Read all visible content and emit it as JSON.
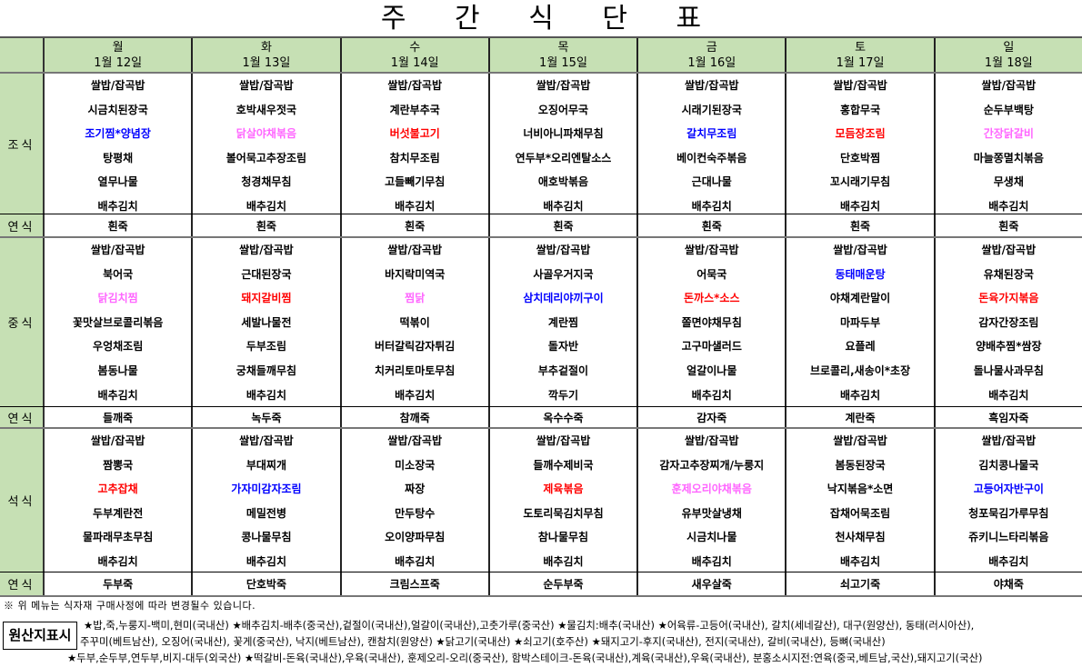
{
  "title": "주 간 식 단 표",
  "days": [
    {
      "name": "월",
      "date": "1월 12일"
    },
    {
      "name": "화",
      "date": "1월 13일"
    },
    {
      "name": "수",
      "date": "1월 14일"
    },
    {
      "name": "목",
      "date": "1월 15일"
    },
    {
      "name": "금",
      "date": "1월 16일"
    },
    {
      "name": "토",
      "date": "1월 17일"
    },
    {
      "name": "일",
      "date": "1월 18일"
    }
  ],
  "colors": {
    "header_bg": "#c6e0b4",
    "blue": "#0000ff",
    "pink": "#ff66ff",
    "red": "#ff0000"
  },
  "meals": [
    {
      "label": "조식",
      "items": [
        [
          [
            "쌀밥/잡곡밥"
          ],
          [
            "시금치된장국"
          ],
          [
            "조기찜*양념장",
            "blue"
          ],
          [
            "탕평채"
          ],
          [
            "열무나물"
          ],
          [
            "배추김치"
          ]
        ],
        [
          [
            "쌀밥/잡곡밥"
          ],
          [
            "호박새우젓국"
          ],
          [
            "닭살야채볶음",
            "pink"
          ],
          [
            "볼어묵고추장조림"
          ],
          [
            "청경채무침"
          ],
          [
            "배추김치"
          ]
        ],
        [
          [
            "쌀밥/잡곡밥"
          ],
          [
            "계란부추국"
          ],
          [
            "버섯불고기",
            "red"
          ],
          [
            "참치무조림"
          ],
          [
            "고들빼기무침"
          ],
          [
            "배추김치"
          ]
        ],
        [
          [
            "쌀밥/잡곡밥"
          ],
          [
            "오징어무국"
          ],
          [
            "너비아니파채무침"
          ],
          [
            "연두부*오리엔탈소스"
          ],
          [
            "애호박볶음"
          ],
          [
            "배추김치"
          ]
        ],
        [
          [
            "쌀밥/잡곡밥"
          ],
          [
            "시래기된장국"
          ],
          [
            "갈치무조림",
            "blue"
          ],
          [
            "베이컨숙주볶음"
          ],
          [
            "근대나물"
          ],
          [
            "배추김치"
          ]
        ],
        [
          [
            "쌀밥/잡곡밥"
          ],
          [
            "홍합무국"
          ],
          [
            "모듬장조림",
            "red"
          ],
          [
            "단호박찜"
          ],
          [
            "꼬시래기무침"
          ],
          [
            "배추김치"
          ]
        ],
        [
          [
            "쌀밥/잡곡밥"
          ],
          [
            "순두부백탕"
          ],
          [
            "간장닭갈비",
            "pink"
          ],
          [
            "마늘쫑멸치볶음"
          ],
          [
            "무생채"
          ],
          [
            "배추김치"
          ]
        ]
      ]
    },
    {
      "label": "연식",
      "items": [
        [
          [
            "흰죽"
          ]
        ],
        [
          [
            "흰죽"
          ]
        ],
        [
          [
            "흰죽"
          ]
        ],
        [
          [
            "흰죽"
          ]
        ],
        [
          [
            "흰죽"
          ]
        ],
        [
          [
            "흰죽"
          ]
        ],
        [
          [
            "흰죽"
          ]
        ]
      ]
    },
    {
      "label": "중식",
      "items": [
        [
          [
            "쌀밥/잡곡밥"
          ],
          [
            "북어국"
          ],
          [
            "닭김치찜",
            "pink"
          ],
          [
            "꽃맛살브로콜리볶음"
          ],
          [
            "우엉채조림"
          ],
          [
            "봄동나물"
          ],
          [
            "배추김치"
          ]
        ],
        [
          [
            "쌀밥/잡곡밥"
          ],
          [
            "근대된장국"
          ],
          [
            "돼지갈비찜",
            "red"
          ],
          [
            "세발나물전"
          ],
          [
            "두부조림"
          ],
          [
            "궁채들깨무침"
          ],
          [
            "배추김치"
          ]
        ],
        [
          [
            "쌀밥/잡곡밥"
          ],
          [
            "바지락미역국"
          ],
          [
            "찜닭",
            "pink"
          ],
          [
            "떡볶이"
          ],
          [
            "버터갈릭감자튀김"
          ],
          [
            "치커리토마토무침"
          ],
          [
            "배추김치"
          ]
        ],
        [
          [
            "쌀밥/잡곡밥"
          ],
          [
            "사골우거지국"
          ],
          [
            "삼치데리야끼구이",
            "blue"
          ],
          [
            "계란찜"
          ],
          [
            "돌자반"
          ],
          [
            "부추겉절이"
          ],
          [
            "깍두기"
          ]
        ],
        [
          [
            "쌀밥/잡곡밥"
          ],
          [
            "어묵국"
          ],
          [
            "돈까스*소스",
            "red"
          ],
          [
            "쫄면야채무침"
          ],
          [
            "고구마샐러드"
          ],
          [
            "얼갈이나물"
          ],
          [
            "배추김치"
          ]
        ],
        [
          [
            "쌀밥/잡곡밥"
          ],
          [
            "동태매운탕",
            "blue"
          ],
          [
            "야채계란말이"
          ],
          [
            "마파두부"
          ],
          [
            "요플레"
          ],
          [
            "브로콜리,새송이*초장"
          ],
          [
            "배추김치"
          ]
        ],
        [
          [
            "쌀밥/잡곡밥"
          ],
          [
            "유채된장국"
          ],
          [
            "돈육가지볶음",
            "red"
          ],
          [
            "감자간장조림"
          ],
          [
            "양배추찜*쌈장"
          ],
          [
            "돌나물사과무침"
          ],
          [
            "배추김치"
          ]
        ]
      ]
    },
    {
      "label": "연식",
      "items": [
        [
          [
            "들깨죽"
          ]
        ],
        [
          [
            "녹두죽"
          ]
        ],
        [
          [
            "참깨죽"
          ]
        ],
        [
          [
            "옥수수죽"
          ]
        ],
        [
          [
            "감자죽"
          ]
        ],
        [
          [
            "계란죽"
          ]
        ],
        [
          [
            "흑임자죽"
          ]
        ]
      ]
    },
    {
      "label": "석식",
      "items": [
        [
          [
            "쌀밥/잡곡밥"
          ],
          [
            "짬뽕국"
          ],
          [
            "고추잡채",
            "red"
          ],
          [
            "두부계란전"
          ],
          [
            "물파래무초무침"
          ],
          [
            "배추김치"
          ]
        ],
        [
          [
            "쌀밥/잡곡밥"
          ],
          [
            "부대찌개"
          ],
          [
            "가자미감자조림",
            "blue"
          ],
          [
            "메밀전병"
          ],
          [
            "콩나물무침"
          ],
          [
            "배추김치"
          ]
        ],
        [
          [
            "쌀밥/잡곡밥"
          ],
          [
            "미소장국"
          ],
          [
            "짜장"
          ],
          [
            "만두탕수"
          ],
          [
            "오이양파무침"
          ],
          [
            "배추김치"
          ]
        ],
        [
          [
            "쌀밥/잡곡밥"
          ],
          [
            "들깨수제비국"
          ],
          [
            "제육볶음",
            "red"
          ],
          [
            "도토리묵김치무침"
          ],
          [
            "참나물무침"
          ],
          [
            "배추김치"
          ]
        ],
        [
          [
            "쌀밥/잡곡밥"
          ],
          [
            "감자고추장찌개/누룽지"
          ],
          [
            "훈제오리야채볶음",
            "pink"
          ],
          [
            "유부맛살냉채"
          ],
          [
            "시금치나물"
          ],
          [
            "배추김치"
          ]
        ],
        [
          [
            "쌀밥/잡곡밥"
          ],
          [
            "봄동된장국"
          ],
          [
            "낙지볶음*소면"
          ],
          [
            "잡채어묵조림"
          ],
          [
            "천사채무침"
          ],
          [
            "배추김치"
          ]
        ],
        [
          [
            "쌀밥/잡곡밥"
          ],
          [
            "김치콩나물국"
          ],
          [
            "고등어자반구이",
            "blue"
          ],
          [
            "청포묵김가루무침"
          ],
          [
            "쥬키니느타리볶음"
          ],
          [
            "배추김치"
          ]
        ]
      ]
    },
    {
      "label": "연식",
      "items": [
        [
          [
            "두부죽"
          ]
        ],
        [
          [
            "단호박죽"
          ]
        ],
        [
          [
            "크림스프죽"
          ]
        ],
        [
          [
            "순두부죽"
          ]
        ],
        [
          [
            "새우살죽"
          ]
        ],
        [
          [
            "쇠고기죽"
          ]
        ],
        [
          [
            "야채죽"
          ]
        ]
      ]
    }
  ],
  "note": "※ 위 메뉴는 식자재 구매사정에 따라 변경될수 있습니다.",
  "origin": {
    "label": "원산지표시",
    "lines": [
      "★밥,죽,누룽지-백미,현미(국내산) ★배추김치-배추(중국산),겉절이(국내산),얼갈이(국내산),고춧가루(중국산) ★물김치:배추(국내산) ★어육류-고등어(국내산), 갈치(세네갈산), 대구(원양산), 동태(러시아산),",
      "주꾸미(베트남산), 오징어(국내산), 꽃게(중국산), 낙지(베트남산), 캔참치(원양산)  ★닭고기(국내산)  ★쇠고기(호주산) ★돼지고기-후지(국내산), 전지(국내산), 갈비(국내산), 등뼈(국내산)",
      "★두부,순두부,연두부,비지-대두(외국산) ★떡갈비-돈육(국내산),우육(국내산), 훈제오리-오리(중국산), 함박스테이크-돈육(국내산),계육(국내산),우육(국내산), 분홍소시지전:연육(중국,베트남,국산),돼지고기(국산)"
    ]
  }
}
